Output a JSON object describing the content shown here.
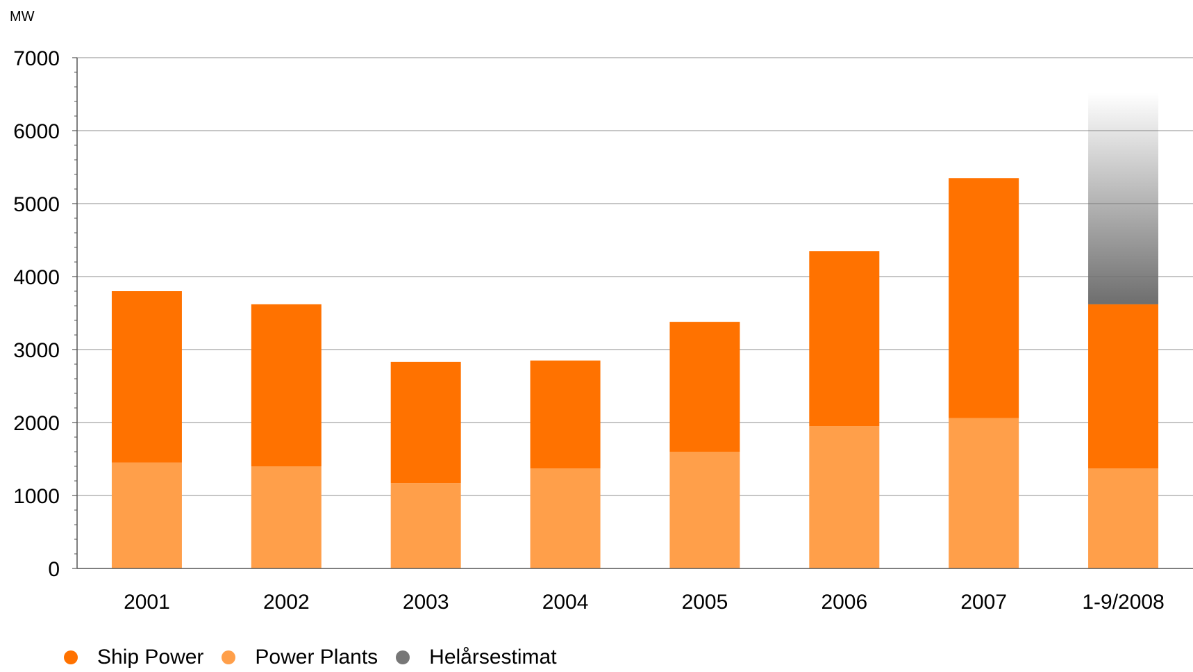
{
  "chart_data": {
    "type": "bar",
    "stacked": true,
    "ylabel": "MW",
    "ylim": [
      0,
      7000
    ],
    "yticks": [
      0,
      1000,
      2000,
      3000,
      4000,
      5000,
      6000,
      7000
    ],
    "categories": [
      "2001",
      "2002",
      "2003",
      "2004",
      "2005",
      "2006",
      "2007",
      "1-9/2008"
    ],
    "series": [
      {
        "name": "Power Plants",
        "color": "#ff9f4a",
        "values": [
          1450,
          1400,
          1170,
          1370,
          1600,
          1950,
          2060,
          1370
        ]
      },
      {
        "name": "Ship Power",
        "color": "#ff7200",
        "values": [
          2350,
          2220,
          1660,
          1480,
          1780,
          2400,
          3290,
          2250
        ]
      },
      {
        "name": "Helårsestimat",
        "color": "#777777",
        "values": [
          null,
          null,
          null,
          null,
          null,
          null,
          null,
          2900
        ],
        "style": "gradient-fade"
      }
    ],
    "legend": {
      "position": "bottom-left",
      "items": [
        {
          "label": "Ship Power",
          "color": "#ff7200"
        },
        {
          "label": "Power Plants",
          "color": "#ff9f4a"
        },
        {
          "label": "Helårsestimat",
          "color": "#777777"
        }
      ]
    },
    "grid": true
  }
}
